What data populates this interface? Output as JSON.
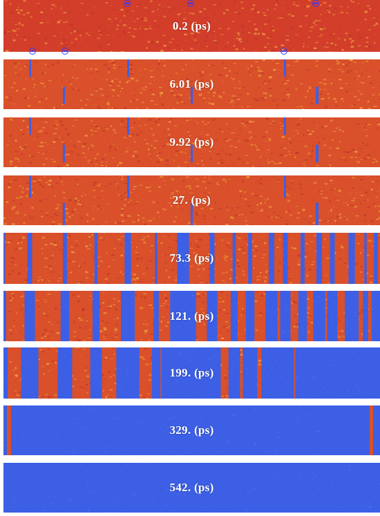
{
  "panels": [
    {
      "label": "0.2 (ps)",
      "blue_fraction": 0.0
    },
    {
      "label": "6.01 (ps)",
      "blue_fraction": 0.01
    },
    {
      "label": "9.92 (ps)",
      "blue_fraction": 0.01
    },
    {
      "label": "27. (ps)",
      "blue_fraction": 0.02
    },
    {
      "label": "73.3 (ps)",
      "blue_fraction": 0.22
    },
    {
      "label": "121. (ps)",
      "blue_fraction": 0.48
    },
    {
      "label": "199. (ps)",
      "blue_fraction": 0.8
    },
    {
      "label": "329. (ps)",
      "blue_fraction": 0.98
    },
    {
      "label": "542. (ps)",
      "blue_fraction": 1.0
    }
  ],
  "colors": {
    "phase_a": "#d9502a",
    "phase_a_initial": "#d23e2a",
    "phase_b": "#3c5fe6",
    "marker": "#3838ff",
    "background": "#ffffff"
  },
  "marker_icon": "circled-minus-icon"
}
